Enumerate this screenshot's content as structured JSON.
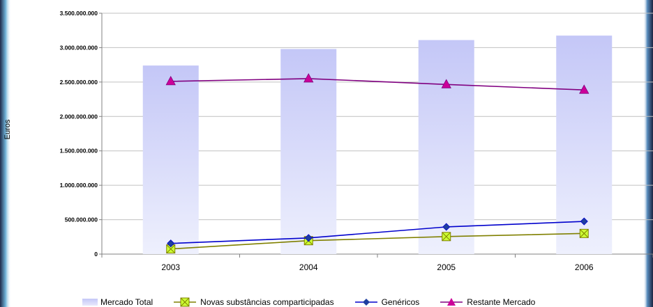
{
  "chart_data": {
    "type": "bar+line",
    "categories": [
      "2003",
      "2004",
      "2005",
      "2006"
    ],
    "ylabel": "Euros",
    "ylim": [
      0,
      3500000000
    ],
    "yticks": [
      0,
      500000000,
      1000000000,
      1500000000,
      2000000000,
      2500000000,
      3000000000,
      3500000000
    ],
    "ytick_labels": [
      "0",
      "500.000.000",
      "1.000.000.000",
      "1.500.000.000",
      "2.000.000.000",
      "2.500.000.000",
      "3.000.000.000",
      "3.500.000.000"
    ],
    "grid": true,
    "legend_position": "bottom",
    "series": [
      {
        "name": "Mercado Total",
        "kind": "bar",
        "color": "#c4c7f7",
        "values": [
          2740000000,
          2980000000,
          3110000000,
          3175000000
        ]
      },
      {
        "name": "Novas substâncias comparticipadas",
        "kind": "line",
        "marker": "square-x",
        "color": "#808000",
        "marker_color": "#ccff33",
        "values": [
          75000000,
          195000000,
          255000000,
          300000000
        ]
      },
      {
        "name": "Genéricos",
        "kind": "line",
        "marker": "diamond",
        "color": "#0000cc",
        "marker_color": "#1f3f9f",
        "values": [
          155000000,
          235000000,
          395000000,
          475000000
        ]
      },
      {
        "name": "Restante Mercado",
        "kind": "line",
        "marker": "triangle",
        "color": "#800080",
        "marker_color": "#cc0099",
        "values": [
          2510000000,
          2550000000,
          2465000000,
          2385000000
        ]
      }
    ]
  }
}
